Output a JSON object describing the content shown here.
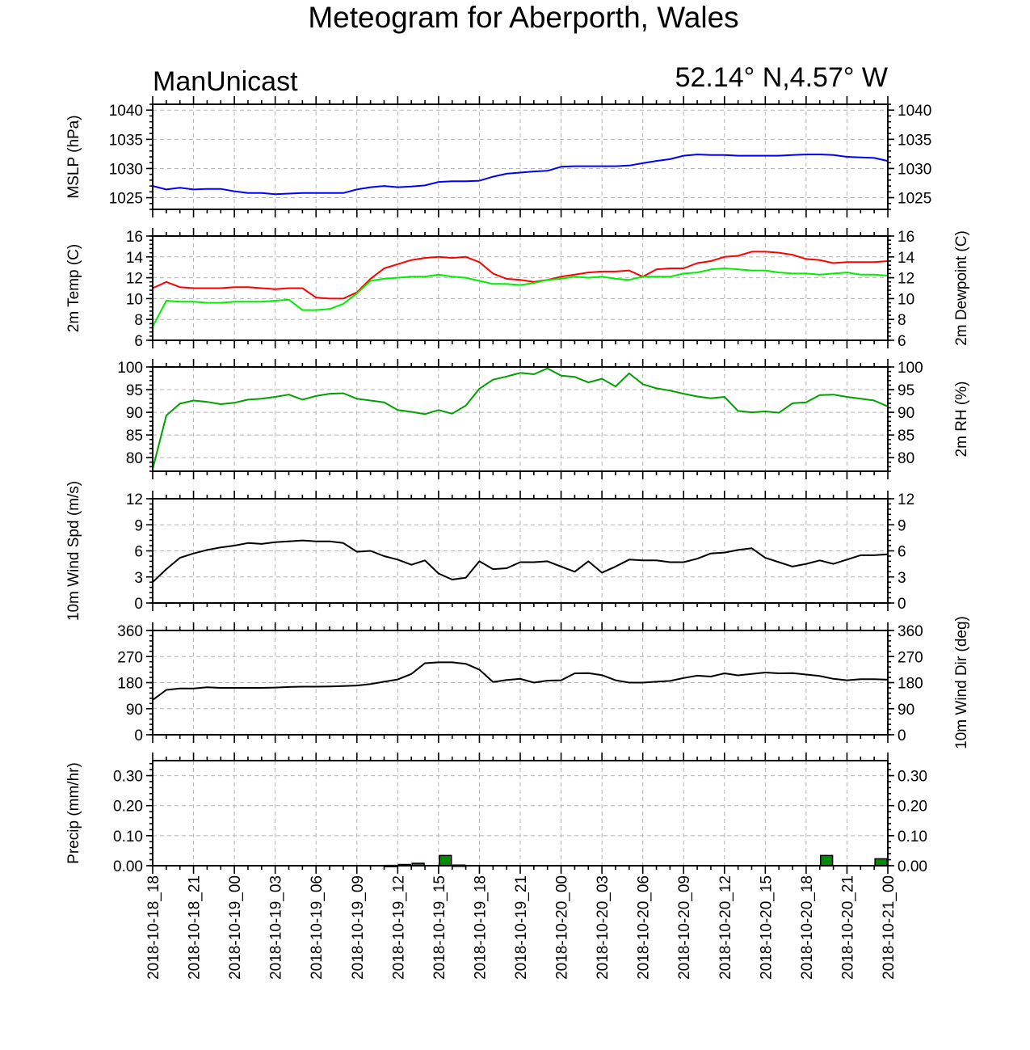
{
  "title": "Meteogram for Aberporth, Wales",
  "model": "ManUnicast",
  "location": "52.14° N,4.57° W",
  "colors": {
    "mslp": "#0000ff",
    "temp": "#ff0000",
    "dewpoint": "#00ee00",
    "rh": "#00a000",
    "wind": "#000000",
    "precip_fill": "#008c00"
  },
  "chart_data": {
    "type": "line",
    "x_ticks": [
      "2018-10-18_18",
      "2018-10-18_21",
      "2018-10-19_00",
      "2018-10-19_03",
      "2018-10-19_06",
      "2018-10-19_09",
      "2018-10-19_12",
      "2018-10-19_15",
      "2018-10-19_18",
      "2018-10-19_21",
      "2018-10-20_00",
      "2018-10-20_03",
      "2018-10-20_06",
      "2018-10-20_09",
      "2018-10-20_12",
      "2018-10-20_15",
      "2018-10-20_18",
      "2018-10-20_21",
      "2018-10-21_00"
    ],
    "x_hours_step": 1,
    "x_hours_start_label": "2018-10-18_18",
    "grid": true,
    "panels": [
      {
        "id": "mslp",
        "ylabel_left": "MSLP (hPa)",
        "ylabel_right": "",
        "ylim": [
          1023,
          1041
        ],
        "yticks": [
          1025,
          1030,
          1035,
          1040
        ],
        "series": [
          {
            "color_key": "mslp",
            "values": [
              1027.0,
              1026.4,
              1026.7,
              1026.4,
              1026.5,
              1026.5,
              1026.1,
              1025.8,
              1025.8,
              1025.6,
              1025.7,
              1025.8,
              1025.8,
              1025.8,
              1025.8,
              1026.4,
              1026.8,
              1027.0,
              1026.8,
              1026.9,
              1027.1,
              1027.7,
              1027.8,
              1027.8,
              1027.9,
              1028.6,
              1029.1,
              1029.3,
              1029.5,
              1029.6,
              1030.3,
              1030.4,
              1030.4,
              1030.4,
              1030.4,
              1030.5,
              1030.9,
              1031.3,
              1031.6,
              1032.2,
              1032.4,
              1032.3,
              1032.3,
              1032.2,
              1032.2,
              1032.2,
              1032.2,
              1032.3,
              1032.4,
              1032.4,
              1032.3,
              1032.0,
              1031.9,
              1031.8,
              1031.3
            ]
          }
        ]
      },
      {
        "id": "temp",
        "ylabel_left": "2m Temp (C)",
        "ylabel_right": "2m Dewpoint (C)",
        "ylim": [
          6,
          16
        ],
        "yticks": [
          6,
          8,
          10,
          12,
          14,
          16
        ],
        "series": [
          {
            "color_key": "temp",
            "values": [
              11.0,
              11.6,
              11.1,
              11.0,
              11.0,
              11.0,
              11.1,
              11.1,
              11.0,
              10.9,
              11.0,
              11.0,
              10.1,
              10.0,
              10.0,
              10.6,
              11.9,
              12.9,
              13.3,
              13.7,
              13.9,
              14.0,
              13.9,
              14.0,
              13.5,
              12.4,
              11.9,
              11.8,
              11.6,
              11.8,
              12.1,
              12.3,
              12.5,
              12.6,
              12.6,
              12.7,
              12.1,
              12.8,
              12.9,
              12.9,
              13.4,
              13.6,
              14.0,
              14.1,
              14.5,
              14.5,
              14.4,
              14.2,
              13.8,
              13.7,
              13.4,
              13.5,
              13.5,
              13.5,
              13.6
            ]
          },
          {
            "color_key": "dewpoint",
            "values": [
              7.3,
              9.8,
              9.7,
              9.7,
              9.6,
              9.6,
              9.7,
              9.7,
              9.7,
              9.8,
              9.9,
              8.9,
              8.9,
              9.0,
              9.5,
              10.5,
              11.7,
              11.9,
              12.0,
              12.1,
              12.1,
              12.3,
              12.1,
              12.0,
              11.7,
              11.4,
              11.4,
              11.3,
              11.5,
              11.8,
              11.9,
              12.1,
              12.0,
              12.1,
              11.9,
              11.8,
              12.1,
              12.1,
              12.1,
              12.4,
              12.5,
              12.8,
              12.9,
              12.8,
              12.7,
              12.7,
              12.5,
              12.4,
              12.4,
              12.3,
              12.4,
              12.5,
              12.3,
              12.3,
              12.2
            ]
          }
        ]
      },
      {
        "id": "rh",
        "ylabel_left": "",
        "ylabel_right": "2m RH (%)",
        "ylim": [
          77,
          100
        ],
        "yticks": [
          80,
          85,
          90,
          95,
          100
        ],
        "series": [
          {
            "color_key": "rh",
            "values": [
              77.5,
              89.3,
              91.9,
              92.6,
              92.3,
              91.8,
              92.1,
              92.8,
              93.0,
              93.4,
              93.9,
              92.8,
              93.6,
              94.1,
              94.2,
              93.0,
              92.6,
              92.2,
              90.5,
              90.1,
              89.6,
              90.5,
              89.7,
              91.5,
              95.2,
              97.2,
              97.9,
              98.7,
              98.4,
              99.7,
              98.1,
              97.8,
              96.6,
              97.4,
              95.7,
              98.6,
              96.2,
              95.3,
              94.8,
              94.1,
              93.5,
              93.1,
              93.4,
              90.3,
              90.0,
              90.2,
              89.9,
              92.0,
              92.2,
              93.8,
              93.9,
              93.4,
              93.0,
              92.6,
              91.3
            ]
          }
        ]
      },
      {
        "id": "wspd",
        "ylabel_left": "10m Wind Spd (m/s)",
        "ylabel_right": "",
        "ylim": [
          0,
          12
        ],
        "yticks": [
          0,
          3,
          6,
          9,
          12
        ],
        "series": [
          {
            "color_key": "wind",
            "values": [
              2.4,
              3.9,
              5.2,
              5.7,
              6.1,
              6.4,
              6.6,
              6.9,
              6.8,
              7.0,
              7.1,
              7.2,
              7.1,
              7.1,
              6.9,
              5.9,
              6.0,
              5.4,
              5.0,
              4.4,
              4.9,
              3.4,
              2.7,
              2.9,
              4.8,
              3.9,
              4.0,
              4.7,
              4.7,
              4.8,
              4.2,
              3.6,
              4.8,
              3.5,
              4.2,
              5.0,
              4.9,
              4.9,
              4.7,
              4.7,
              5.1,
              5.7,
              5.8,
              6.1,
              6.3,
              5.2,
              4.7,
              4.2,
              4.5,
              4.9,
              4.5,
              5.0,
              5.5,
              5.5,
              5.6
            ]
          }
        ]
      },
      {
        "id": "wdir",
        "ylabel_left": "",
        "ylabel_right": "10m Wind Dir (deg)",
        "ylim": [
          0,
          360
        ],
        "yticks": [
          0,
          90,
          180,
          270,
          360
        ],
        "series": [
          {
            "color_key": "wind",
            "values": [
              120,
              155,
              160,
              160,
              164,
              162,
              162,
              162,
              162,
              163,
              165,
              166,
              166,
              167,
              168,
              170,
              175,
              183,
              191,
              210,
              247,
              250,
              250,
              245,
              225,
              182,
              189,
              193,
              180,
              187,
              188,
              212,
              213,
              206,
              188,
              180,
              180,
              183,
              186,
              196,
              204,
              201,
              212,
              205,
              210,
              215,
              212,
              213,
              208,
              203,
              193,
              188,
              192,
              192,
              190
            ]
          }
        ]
      },
      {
        "id": "precip",
        "ylabel_left": "Precip (mm/hr)",
        "ylabel_right": "",
        "ylim": [
          0,
          0.35
        ],
        "yticks": [
          0.0,
          0.1,
          0.2,
          0.3
        ],
        "ytick_labels": [
          "0.00",
          "0.10",
          "0.20",
          "0.30"
        ],
        "type": "bar",
        "bars": {
          "color_key": "precip_fill",
          "values": [
            0,
            0,
            0,
            0,
            0,
            0,
            0,
            0,
            0,
            0,
            0,
            0,
            0,
            0,
            0,
            0,
            0,
            0.001,
            0.004,
            0.008,
            0,
            0.034,
            0.002,
            0,
            0,
            0,
            0,
            0,
            0,
            0,
            0,
            0,
            0,
            0,
            0,
            0,
            0,
            0,
            0,
            0,
            0,
            0,
            0,
            0,
            0,
            0,
            0,
            0,
            0,
            0.034,
            0,
            0,
            0,
            0.023,
            0
          ]
        }
      }
    ]
  }
}
